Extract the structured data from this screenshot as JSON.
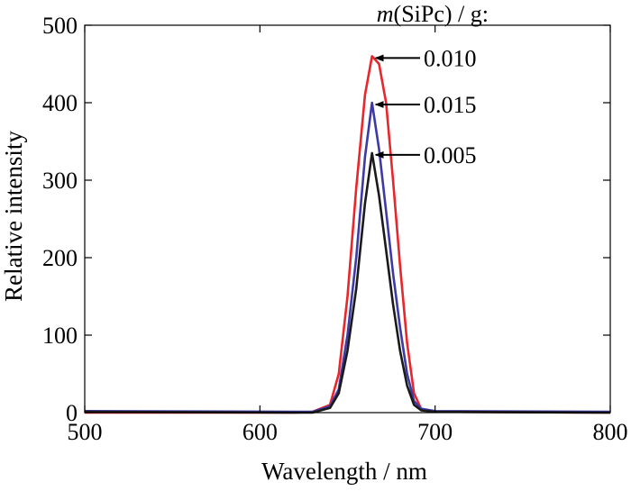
{
  "chart_data": {
    "type": "line",
    "xlabel": "Wavelength / nm",
    "ylabel": "Relative intensity",
    "xlim": [
      500,
      800
    ],
    "ylim": [
      0,
      500
    ],
    "xticks": [
      500,
      600,
      700,
      800
    ],
    "yticks": [
      0,
      100,
      200,
      300,
      400,
      500
    ],
    "grid": false,
    "legend_title": {
      "italic": "m",
      "rest": "(SiPc) / g:"
    },
    "series": [
      {
        "name": "0.010",
        "color": "#e8262b",
        "points": [
          [
            500,
            0
          ],
          [
            620,
            0
          ],
          [
            630,
            1
          ],
          [
            640,
            10
          ],
          [
            645,
            50
          ],
          [
            650,
            150
          ],
          [
            655,
            290
          ],
          [
            660,
            410
          ],
          [
            664,
            460
          ],
          [
            668,
            450
          ],
          [
            672,
            400
          ],
          [
            676,
            300
          ],
          [
            680,
            190
          ],
          [
            684,
            90
          ],
          [
            688,
            25
          ],
          [
            692,
            5
          ],
          [
            700,
            1
          ],
          [
            800,
            0
          ]
        ]
      },
      {
        "name": "0.015",
        "color": "#3d3aa6",
        "points": [
          [
            500,
            2
          ],
          [
            620,
            1
          ],
          [
            630,
            1
          ],
          [
            640,
            8
          ],
          [
            645,
            30
          ],
          [
            650,
            100
          ],
          [
            655,
            200
          ],
          [
            660,
            330
          ],
          [
            664,
            400
          ],
          [
            668,
            340
          ],
          [
            672,
            260
          ],
          [
            676,
            180
          ],
          [
            680,
            110
          ],
          [
            684,
            50
          ],
          [
            688,
            15
          ],
          [
            692,
            5
          ],
          [
            700,
            2
          ],
          [
            800,
            1
          ]
        ]
      },
      {
        "name": "0.005",
        "color": "#1a1a1a",
        "points": [
          [
            500,
            1
          ],
          [
            620,
            0
          ],
          [
            630,
            0
          ],
          [
            640,
            6
          ],
          [
            645,
            25
          ],
          [
            650,
            80
          ],
          [
            655,
            160
          ],
          [
            660,
            270
          ],
          [
            664,
            335
          ],
          [
            668,
            280
          ],
          [
            672,
            210
          ],
          [
            676,
            140
          ],
          [
            680,
            80
          ],
          [
            684,
            35
          ],
          [
            688,
            10
          ],
          [
            692,
            3
          ],
          [
            700,
            1
          ],
          [
            800,
            0
          ]
        ]
      }
    ],
    "annotations": [
      {
        "text": "0.010",
        "series": "0.010",
        "x": 664,
        "y": 460
      },
      {
        "text": "0.015",
        "series": "0.015",
        "x": 664,
        "y": 400
      },
      {
        "text": "0.005",
        "series": "0.005",
        "x": 664,
        "y": 335
      }
    ]
  }
}
